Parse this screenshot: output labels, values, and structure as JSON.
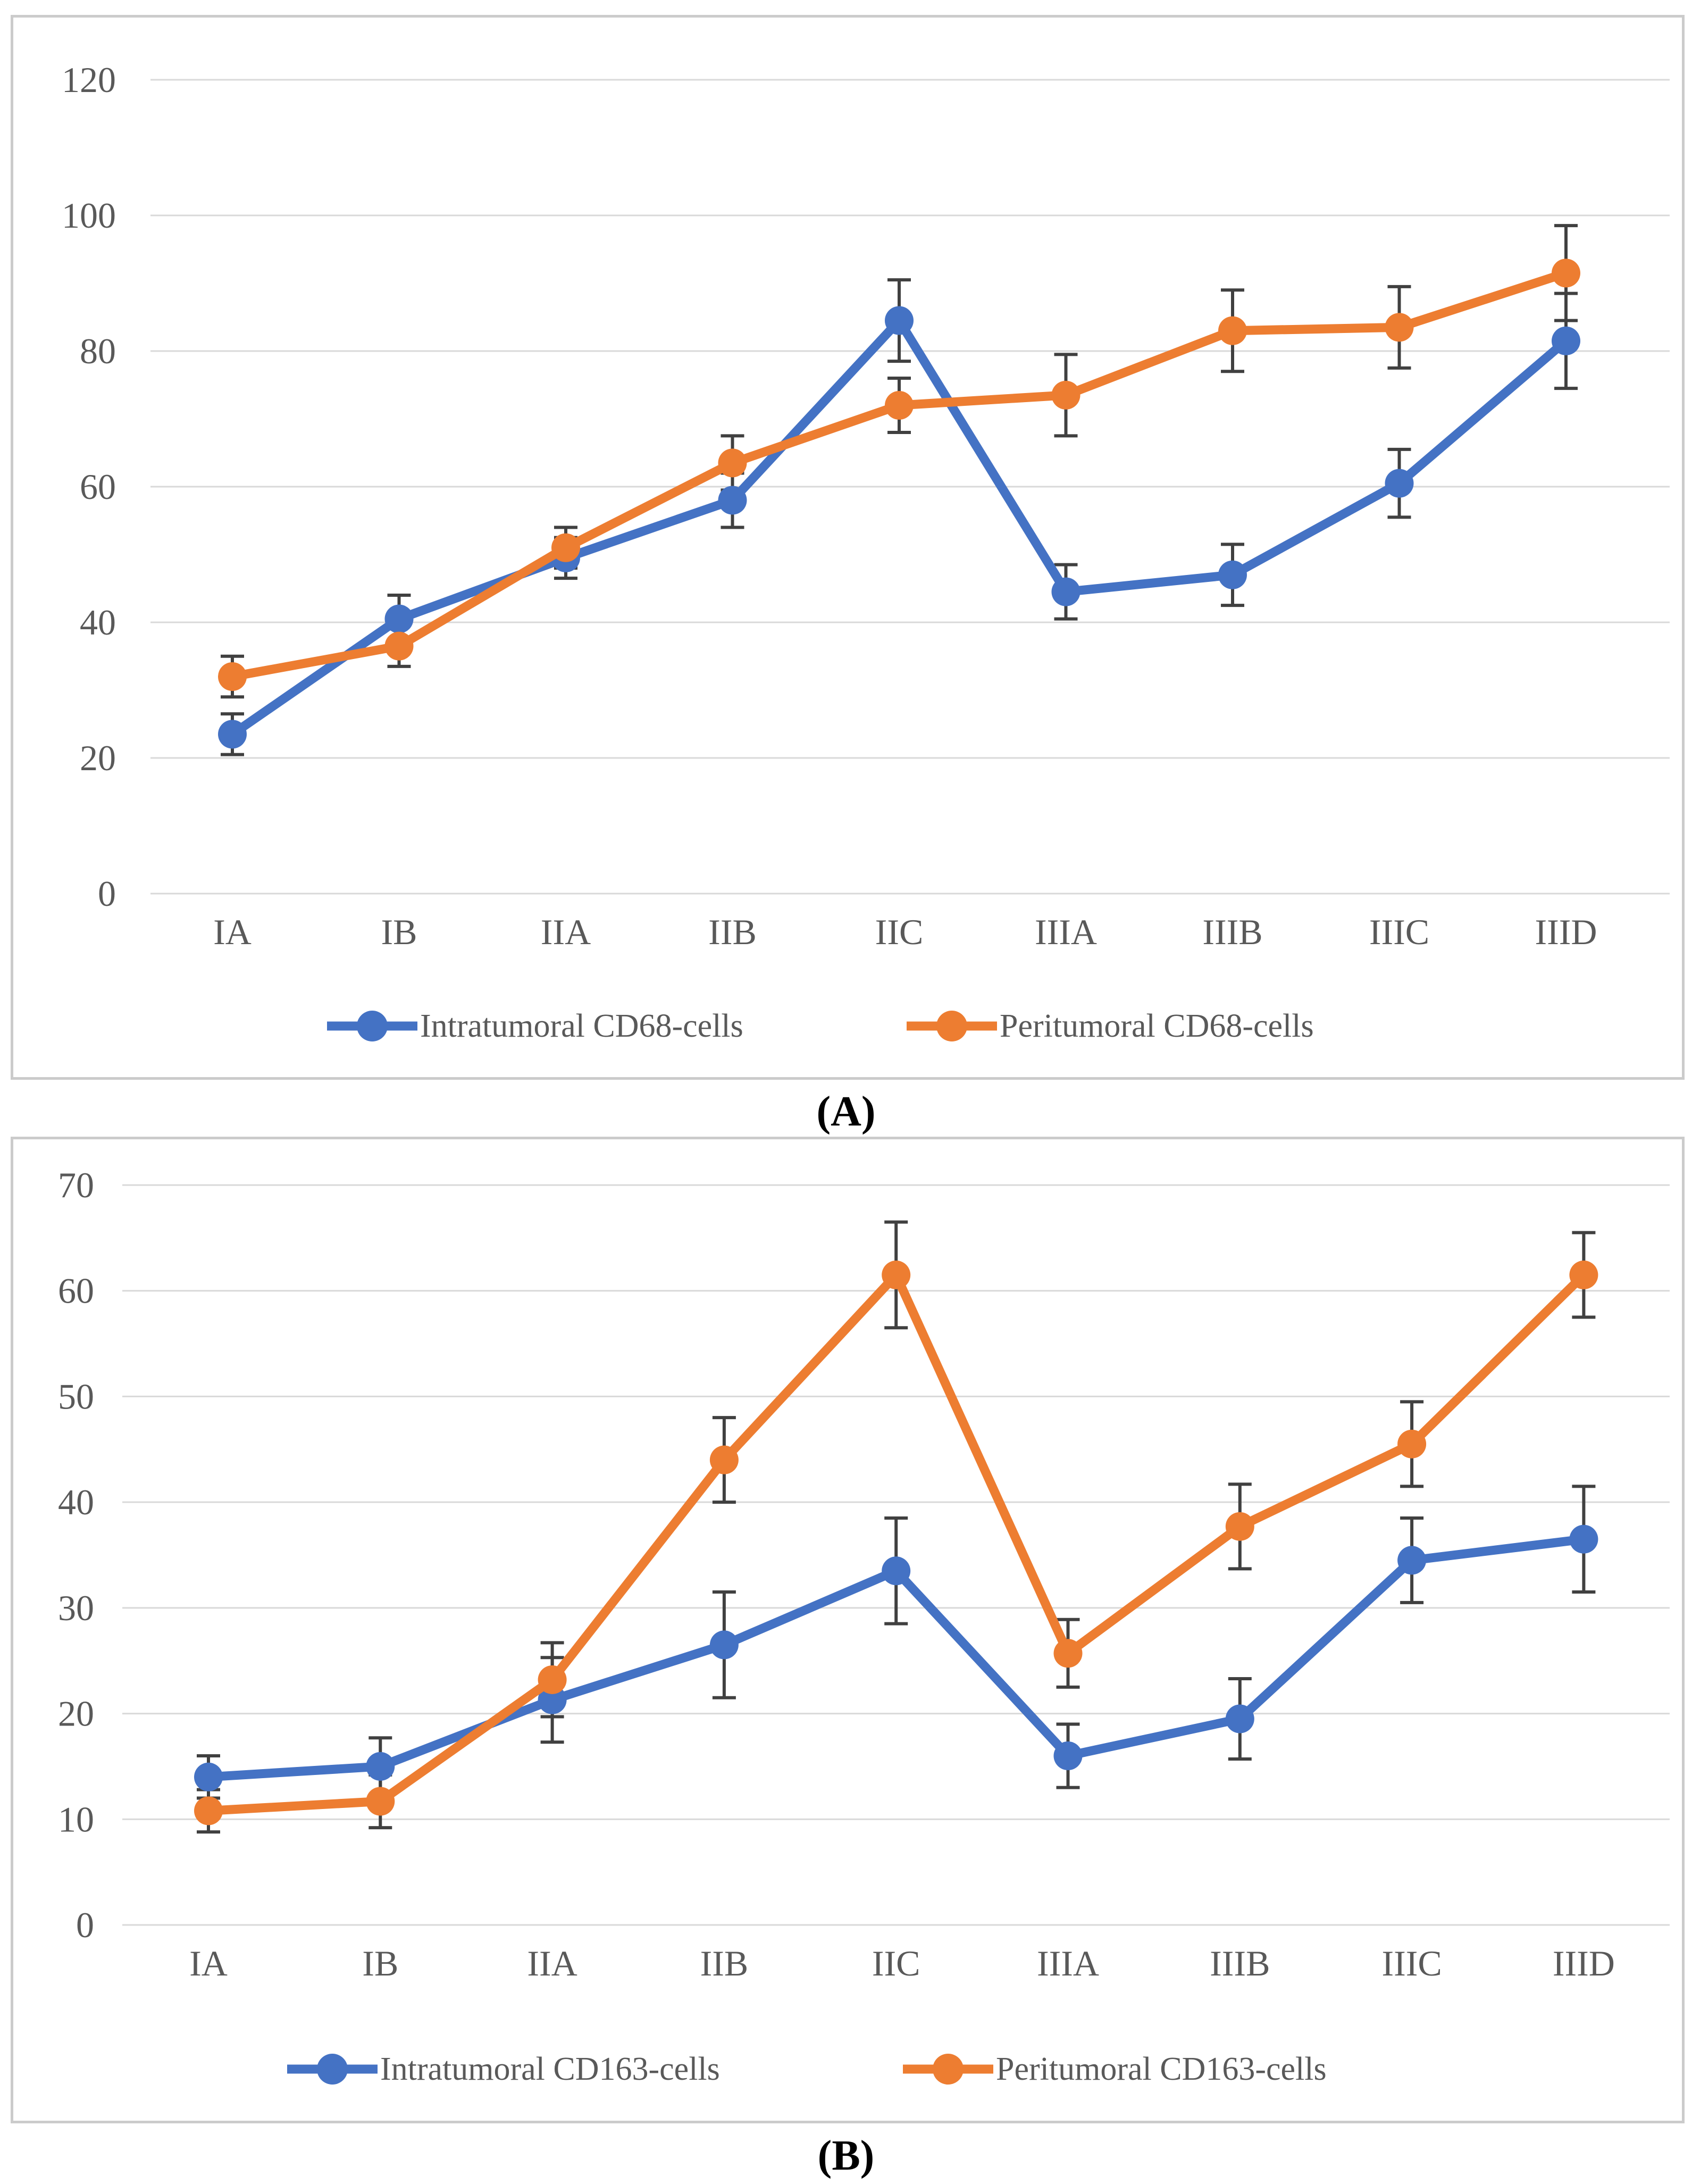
{
  "page": {
    "captions": {
      "a": "(A)",
      "b": "(B)"
    }
  },
  "colors": {
    "series_blue": "#4472C4",
    "series_orange": "#ED7D31",
    "gridline": "#D9D9D9",
    "axis_label": "#595959",
    "error_bar": "#404040",
    "panel_border": "#CBCBCB"
  },
  "chart_data": [
    {
      "type": "line",
      "panel": "A",
      "caption": "(A)",
      "title": "",
      "xlabel": "",
      "ylabel": "",
      "categories": [
        "IA",
        "IB",
        "IIA",
        "IIB",
        "IIC",
        "IIIA",
        "IIIB",
        "IIIC",
        "IIID"
      ],
      "yticks": [
        0,
        20,
        40,
        60,
        80,
        100,
        120
      ],
      "ylim": [
        0,
        120
      ],
      "grid": true,
      "legend_position": "bottom",
      "series": [
        {
          "name": "Intratumoral CD68-cells",
          "color": "#4472C4",
          "values": [
            23.5,
            40.5,
            49.5,
            58,
            84.5,
            44.5,
            47,
            60.5,
            81.5
          ],
          "errors": [
            3,
            3.5,
            3,
            4,
            6,
            4,
            4.5,
            5,
            7
          ]
        },
        {
          "name": "Peritumoral CD68-cells",
          "color": "#ED7D31",
          "values": [
            32,
            36.5,
            51,
            63.5,
            72,
            73.5,
            83,
            83.5,
            91.5
          ],
          "errors": [
            3,
            3,
            3,
            4,
            4,
            6,
            6,
            6,
            7
          ]
        }
      ]
    },
    {
      "type": "line",
      "panel": "B",
      "caption": "(B)",
      "title": "",
      "xlabel": "",
      "ylabel": "",
      "categories": [
        "IA",
        "IB",
        "IIA",
        "IIB",
        "IIC",
        "IIIA",
        "IIIB",
        "IIIC",
        "IIID"
      ],
      "yticks": [
        0,
        10,
        20,
        30,
        40,
        50,
        60,
        70
      ],
      "ylim": [
        0,
        70
      ],
      "grid": true,
      "legend_position": "bottom",
      "series": [
        {
          "name": "Intratumoral CD163-cells",
          "color": "#4472C4",
          "values": [
            14,
            15,
            21.3,
            26.5,
            33.5,
            16,
            19.5,
            34.5,
            36.5
          ],
          "errors": [
            2,
            2.7,
            4,
            5,
            5,
            3,
            3.8,
            4,
            5
          ]
        },
        {
          "name": "Peritumoral CD163-cells",
          "color": "#ED7D31",
          "values": [
            10.8,
            11.7,
            23.2,
            44,
            61.5,
            25.7,
            37.7,
            45.5,
            61.5
          ],
          "errors": [
            2,
            2.5,
            3.5,
            4,
            5,
            3.2,
            4,
            4,
            4
          ]
        }
      ]
    }
  ]
}
